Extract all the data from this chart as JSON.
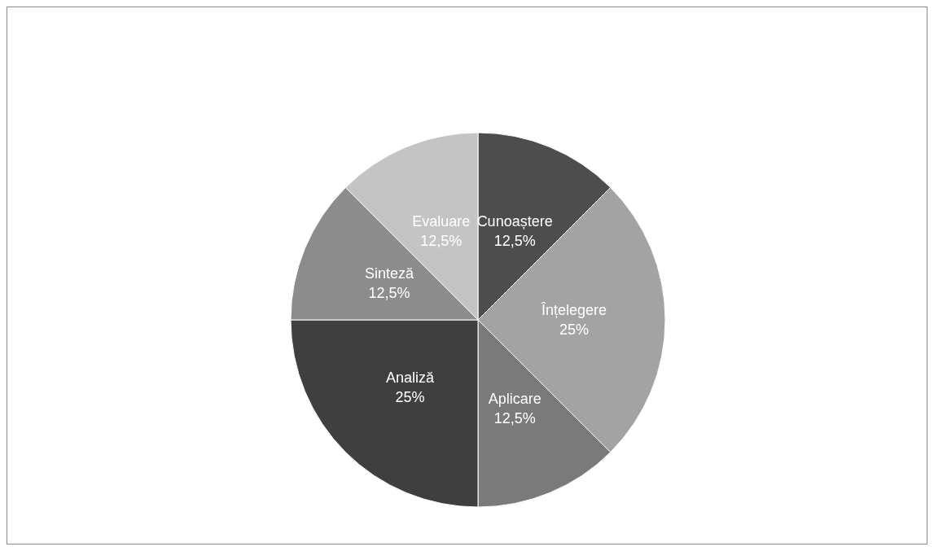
{
  "chart_data": {
    "type": "pie",
    "categories": [
      "Cunoaștere",
      "Înțelegere",
      "Aplicare",
      "Analiză",
      "Sinteză",
      "Evaluare"
    ],
    "values": [
      12.5,
      25,
      12.5,
      25,
      12.5,
      12.5
    ],
    "value_labels": [
      "12,5%",
      "25%",
      "12,5%",
      "25%",
      "12,5%",
      "12,5%"
    ],
    "colors": [
      "#4d4d4d",
      "#a3a3a3",
      "#7a7a7a",
      "#3f3f3f",
      "#8c8c8c",
      "#c4c4c4"
    ]
  }
}
